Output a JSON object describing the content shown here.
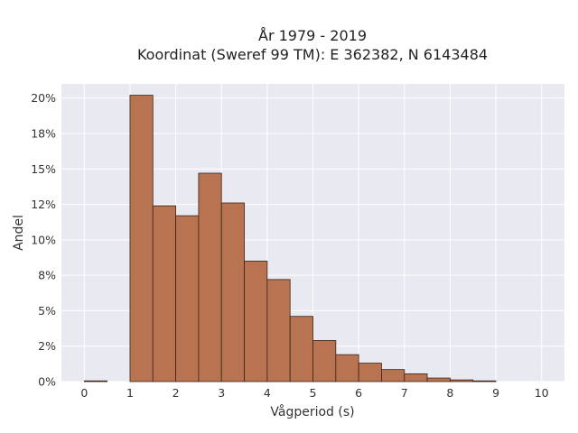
{
  "chart_data": {
    "type": "bar",
    "title_line1": "År 1979 - 2019",
    "title_line2": "Koordinat (Sweref 99 TM): E 362382, N 6143484",
    "xlabel": "Vågperiod (s)",
    "ylabel": "Andel",
    "x_ticks": [
      "0",
      "1",
      "2",
      "3",
      "4",
      "5",
      "6",
      "7",
      "8",
      "9",
      "10"
    ],
    "x_tick_values": [
      0,
      1,
      2,
      3,
      4,
      5,
      6,
      7,
      8,
      9,
      10
    ],
    "y_ticks": [
      "0%",
      "2%",
      "5%",
      "8%",
      "10%",
      "12%",
      "15%",
      "18%",
      "20%"
    ],
    "y_tick_values": [
      0,
      2.5,
      5,
      7.5,
      10,
      12.5,
      15,
      17.5,
      20
    ],
    "xlim": [
      -0.5,
      10.5
    ],
    "ylim": [
      0,
      21
    ],
    "bin_width": 0.5,
    "bins": [
      {
        "x0": 0.0,
        "x1": 0.5,
        "value": 0.05
      },
      {
        "x0": 0.5,
        "x1": 1.0,
        "value": 0.0
      },
      {
        "x0": 1.0,
        "x1": 1.5,
        "value": 20.2
      },
      {
        "x0": 1.5,
        "x1": 2.0,
        "value": 12.4
      },
      {
        "x0": 2.0,
        "x1": 2.5,
        "value": 11.7
      },
      {
        "x0": 2.5,
        "x1": 3.0,
        "value": 14.7
      },
      {
        "x0": 3.0,
        "x1": 3.5,
        "value": 12.6
      },
      {
        "x0": 3.5,
        "x1": 4.0,
        "value": 8.5
      },
      {
        "x0": 4.0,
        "x1": 4.5,
        "value": 7.2
      },
      {
        "x0": 4.5,
        "x1": 5.0,
        "value": 4.6
      },
      {
        "x0": 5.0,
        "x1": 5.5,
        "value": 2.9
      },
      {
        "x0": 5.5,
        "x1": 6.0,
        "value": 1.9
      },
      {
        "x0": 6.0,
        "x1": 6.5,
        "value": 1.3
      },
      {
        "x0": 6.5,
        "x1": 7.0,
        "value": 0.85
      },
      {
        "x0": 7.0,
        "x1": 7.5,
        "value": 0.55
      },
      {
        "x0": 7.5,
        "x1": 8.0,
        "value": 0.25
      },
      {
        "x0": 8.0,
        "x1": 8.5,
        "value": 0.12
      },
      {
        "x0": 8.5,
        "x1": 9.0,
        "value": 0.05
      }
    ],
    "grid": true,
    "colors": {
      "bar_fill": "#b87450",
      "bar_edge": "#3a2418",
      "plot_background": "#e9e9f1",
      "grid": "#ffffff"
    }
  }
}
